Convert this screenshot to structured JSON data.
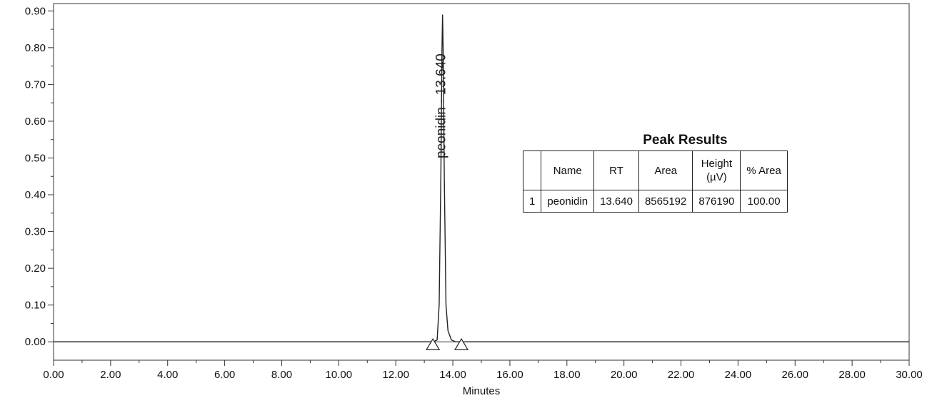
{
  "chart_data": {
    "type": "line",
    "xlabel": "Minutes",
    "ylabel": "",
    "xlim": [
      0,
      30
    ],
    "ylim": [
      -0.05,
      0.92
    ],
    "x_ticks": [
      "0.00",
      "2.00",
      "4.00",
      "6.00",
      "8.00",
      "10.00",
      "12.00",
      "14.00",
      "16.00",
      "18.00",
      "20.00",
      "22.00",
      "24.00",
      "26.00",
      "28.00",
      "30.00"
    ],
    "y_ticks": [
      "0.00",
      "0.10",
      "0.20",
      "0.30",
      "0.40",
      "0.50",
      "0.60",
      "0.70",
      "0.80",
      "0.90"
    ],
    "series": [
      {
        "x": [
          0.0,
          13.3,
          13.45,
          13.52,
          13.58,
          13.62,
          13.64,
          13.66,
          13.7,
          13.76,
          13.83,
          13.95,
          14.1,
          30.0
        ],
        "y": [
          0.0,
          0.0,
          0.005,
          0.1,
          0.45,
          0.8,
          0.89,
          0.8,
          0.45,
          0.1,
          0.03,
          0.005,
          0.0,
          0.0
        ]
      }
    ],
    "peak_label": {
      "text": "peonidin - 13.640",
      "x": 13.64
    },
    "integration_markers": [
      13.3,
      14.3
    ],
    "peak_results": {
      "title": "Peak Results",
      "headers": [
        "",
        "Name",
        "RT",
        "Area",
        "Height (µV)",
        "% Area"
      ],
      "rows": [
        [
          "1",
          "peonidin",
          "13.640",
          "8565192",
          "876190",
          "100.00"
        ]
      ]
    },
    "grid": false,
    "legend": "none"
  }
}
